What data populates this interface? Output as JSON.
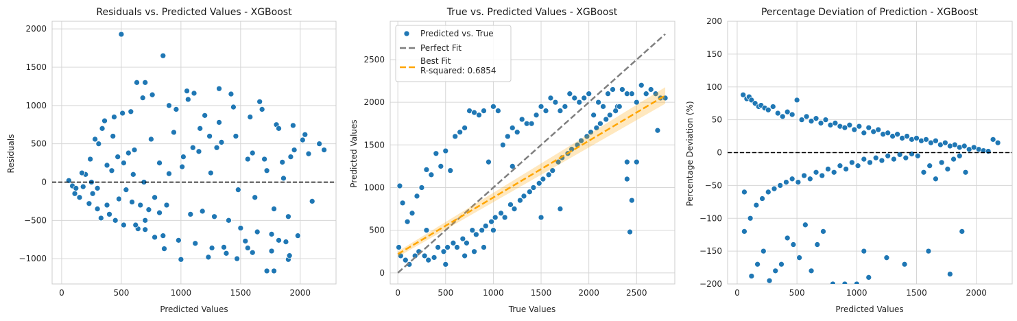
{
  "colors": {
    "points": "#1f77b4",
    "perfect_fit": "#7f7f7f",
    "best_fit": "#ffa500",
    "zero_line": "#000000",
    "grid": "#d6d6d6",
    "spine": "#cccccc"
  },
  "chart_data": [
    {
      "type": "scatter",
      "title": "Residuals vs. Predicted Values - XGBoost",
      "xlabel": "Predicted Values",
      "ylabel": "Residuals",
      "xlim": [
        -80,
        2300
      ],
      "ylim": [
        -1330,
        2100
      ],
      "xticks": [
        0,
        500,
        1000,
        1500,
        2000
      ],
      "yticks": [
        -1000,
        -500,
        0,
        500,
        1000,
        1500,
        2000
      ],
      "grid": true,
      "reference_line": {
        "y": 0,
        "style": "dashed"
      },
      "points_x": [
        500,
        850,
        630,
        700,
        1050,
        1320,
        1660,
        1110,
        1420,
        1800,
        1950,
        2020,
        2160,
        1720,
        1780,
        1900,
        1000,
        1230,
        1380,
        1820,
        1540,
        1600,
        1880,
        1470,
        1260,
        860,
        780,
        640,
        520,
        700,
        330,
        150,
        110,
        90,
        60,
        200,
        380,
        470,
        560,
        610,
        750,
        940,
        1160,
        1240,
        1340,
        1600,
        1700,
        1850,
        1920,
        2070,
        900,
        420,
        250,
        300,
        180,
        260,
        480,
        590,
        660,
        730,
        820,
        1080,
        1180,
        1280,
        1400,
        1500,
        1640,
        1760,
        1980,
        2100,
        2200,
        540,
        380,
        120,
        820,
        1010,
        1150,
        1300,
        1460,
        1560,
        1720,
        1860,
        360,
        440,
        280,
        340,
        510,
        580,
        680,
        760,
        900,
        960,
        1060,
        1200,
        1320,
        1440,
        1580,
        1680,
        1820,
        1940,
        2040,
        230,
        300,
        400,
        450,
        620,
        700,
        850,
        980,
        1120,
        1360,
        1560,
        1760,
        1910,
        170,
        240,
        310,
        430,
        520,
        600,
        690,
        780,
        880,
        1020,
        1100,
        1250,
        1480,
        1620,
        1780,
        1900
      ],
      "points_y": [
        1930,
        1650,
        1300,
        1300,
        1190,
        1220,
        1050,
        1160,
        1150,
        750,
        420,
        550,
        500,
        -1160,
        -1160,
        -1010,
        -1010,
        -980,
        -930,
        -760,
        -770,
        -920,
        -780,
        -1000,
        -860,
        -870,
        -720,
        -610,
        -560,
        -500,
        -470,
        -200,
        -150,
        -50,
        20,
        100,
        220,
        330,
        380,
        420,
        560,
        650,
        700,
        600,
        520,
        380,
        300,
        260,
        330,
        370,
        110,
        150,
        0,
        -80,
        -60,
        -150,
        -220,
        -260,
        -300,
        -360,
        -400,
        -420,
        -380,
        -450,
        -500,
        -600,
        -650,
        -680,
        -700,
        -250,
        420,
        -100,
        -300,
        -80,
        250,
        200,
        400,
        450,
        600,
        300,
        150,
        50,
        800,
        850,
        560,
        700,
        900,
        920,
        1100,
        1140,
        1000,
        950,
        1080,
        870,
        780,
        980,
        850,
        950,
        700,
        740,
        620,
        -280,
        -350,
        -420,
        -500,
        -560,
        -620,
        -700,
        -760,
        -800,
        -850,
        -860,
        -900,
        -960,
        120,
        300,
        500,
        600,
        250,
        100,
        0,
        -200,
        -300,
        330,
        450,
        120,
        -100,
        -200,
        -350,
        -450
      ]
    },
    {
      "type": "scatter",
      "title": "True vs. Predicted Values - XGBoost",
      "xlabel": "True Values",
      "ylabel": "Predicted Values",
      "xlim": [
        -80,
        2900
      ],
      "ylim": [
        -130,
        2950
      ],
      "xticks": [
        0,
        500,
        1000,
        1500,
        2000,
        2500
      ],
      "yticks": [
        0,
        500,
        1000,
        1500,
        2000,
        2500
      ],
      "grid": true,
      "legend": {
        "placement": "top-left",
        "entries": [
          "Predicted vs. True",
          "Perfect Fit",
          "Best Fit\nR-squared: 0.6854"
        ]
      },
      "perfect_fit": {
        "x": [
          0,
          2800
        ],
        "y": [
          0,
          2800
        ]
      },
      "best_fit": {
        "x": [
          0,
          2800
        ],
        "y": [
          220,
          2080
        ],
        "r_squared": 0.6854
      },
      "points_x": [
        20,
        50,
        100,
        150,
        200,
        250,
        300,
        350,
        400,
        450,
        500,
        550,
        600,
        650,
        700,
        750,
        800,
        850,
        900,
        950,
        1000,
        1050,
        1100,
        1150,
        1200,
        1250,
        1300,
        1350,
        1400,
        1450,
        1500,
        1550,
        1600,
        1650,
        1700,
        1750,
        1800,
        1850,
        1900,
        1950,
        2000,
        2050,
        2100,
        2150,
        2200,
        2250,
        2300,
        2350,
        2400,
        2450,
        2500,
        2550,
        2600,
        2650,
        2700,
        2750,
        2800,
        10,
        30,
        80,
        120,
        180,
        220,
        280,
        320,
        380,
        420,
        480,
        520,
        580,
        620,
        680,
        720,
        780,
        820,
        880,
        920,
        980,
        1020,
        1080,
        1120,
        1180,
        1220,
        1280,
        1320,
        1380,
        1420,
        1480,
        1520,
        1580,
        1620,
        1680,
        1720,
        1780,
        1820,
        1880,
        1920,
        1980,
        2020,
        2080,
        2120,
        2180,
        2220,
        2280,
        2320,
        2400,
        2430,
        2450,
        2720,
        1200,
        900,
        1500,
        700,
        500,
        1700,
        1000,
        2500,
        2400,
        300,
        800
      ],
      "points_y": [
        1020,
        820,
        600,
        700,
        900,
        1000,
        1210,
        1150,
        1400,
        1250,
        1430,
        1200,
        1600,
        1650,
        1700,
        1900,
        1880,
        1850,
        1900,
        1300,
        1950,
        1900,
        1500,
        1600,
        1700,
        1650,
        1800,
        1750,
        1750,
        1850,
        1950,
        1900,
        2050,
        2000,
        1900,
        1950,
        2100,
        2050,
        2000,
        2050,
        2100,
        1850,
        2000,
        1950,
        2100,
        2150,
        1950,
        2150,
        2100,
        2100,
        2000,
        2200,
        2100,
        2150,
        2100,
        2050,
        2050,
        300,
        200,
        150,
        100,
        200,
        250,
        200,
        150,
        180,
        300,
        250,
        300,
        350,
        300,
        400,
        350,
        500,
        450,
        500,
        550,
        600,
        650,
        700,
        650,
        800,
        750,
        850,
        900,
        950,
        1000,
        1050,
        1100,
        1150,
        1200,
        1300,
        1350,
        1400,
        1450,
        1500,
        1550,
        1600,
        1650,
        1700,
        1750,
        1800,
        1850,
        1900,
        1950,
        1100,
        480,
        850,
        1670,
        1250,
        300,
        650,
        200,
        100,
        750,
        500,
        1300,
        1300,
        500,
        250
      ]
    },
    {
      "type": "scatter",
      "title": "Percentage Deviation of Prediction - XGBoost",
      "xlabel": "Predicted Values",
      "ylabel": "Percentage Deviation (%)",
      "xlim": [
        -80,
        2300
      ],
      "ylim": [
        -200,
        200
      ],
      "xticks": [
        0,
        500,
        1000,
        1500,
        2000
      ],
      "yticks": [
        -200,
        -150,
        -100,
        -50,
        0,
        50,
        100,
        150,
        200
      ],
      "grid": true,
      "reference_line": {
        "y": 0,
        "style": "dashed"
      },
      "points_x": [
        50,
        80,
        100,
        120,
        150,
        180,
        200,
        230,
        260,
        300,
        340,
        380,
        420,
        460,
        500,
        540,
        580,
        620,
        660,
        700,
        740,
        780,
        820,
        860,
        900,
        940,
        980,
        1020,
        1060,
        1100,
        1140,
        1180,
        1220,
        1260,
        1300,
        1340,
        1380,
        1420,
        1460,
        1500,
        1540,
        1580,
        1620,
        1660,
        1700,
        1740,
        1780,
        1820,
        1860,
        1900,
        1940,
        1980,
        2020,
        2060,
        2100,
        2140,
        2180,
        60,
        110,
        160,
        210,
        260,
        310,
        360,
        410,
        460,
        510,
        560,
        610,
        660,
        710,
        760,
        810,
        860,
        910,
        960,
        1010,
        1060,
        1110,
        1160,
        1210,
        1260,
        1310,
        1360,
        1410,
        1460,
        1510,
        1560,
        1610,
        1660,
        1710,
        1760,
        1810,
        1860,
        1910,
        60,
        120,
        170,
        220,
        270,
        320,
        370,
        420,
        470,
        520,
        570,
        620,
        670,
        720,
        800,
        900,
        1000,
        1100,
        1250,
        1400,
        1600,
        1780,
        1880,
        1060
      ],
      "points_y": [
        88,
        82,
        85,
        80,
        75,
        70,
        72,
        68,
        65,
        70,
        60,
        55,
        62,
        58,
        80,
        50,
        55,
        48,
        52,
        45,
        50,
        42,
        45,
        40,
        38,
        42,
        35,
        40,
        30,
        38,
        32,
        35,
        28,
        30,
        25,
        28,
        22,
        25,
        20,
        22,
        18,
        20,
        15,
        18,
        12,
        15,
        10,
        12,
        8,
        10,
        5,
        8,
        5,
        3,
        2,
        20,
        15,
        -120,
        -100,
        -80,
        -70,
        -60,
        -55,
        -50,
        -45,
        -40,
        -45,
        -35,
        -40,
        -30,
        -35,
        -25,
        -30,
        -20,
        -25,
        -15,
        -20,
        -10,
        -15,
        -8,
        -12,
        -5,
        -10,
        -3,
        -8,
        -2,
        -5,
        -30,
        -20,
        -40,
        -15,
        -25,
        -10,
        -5,
        -30,
        -60,
        -188,
        -170,
        -150,
        -195,
        -180,
        -170,
        -130,
        -140,
        -160,
        -110,
        -180,
        -140,
        -120,
        -200,
        -200,
        -200,
        -190,
        -160,
        -170,
        -150,
        -185,
        -120,
        -150
      ]
    }
  ]
}
